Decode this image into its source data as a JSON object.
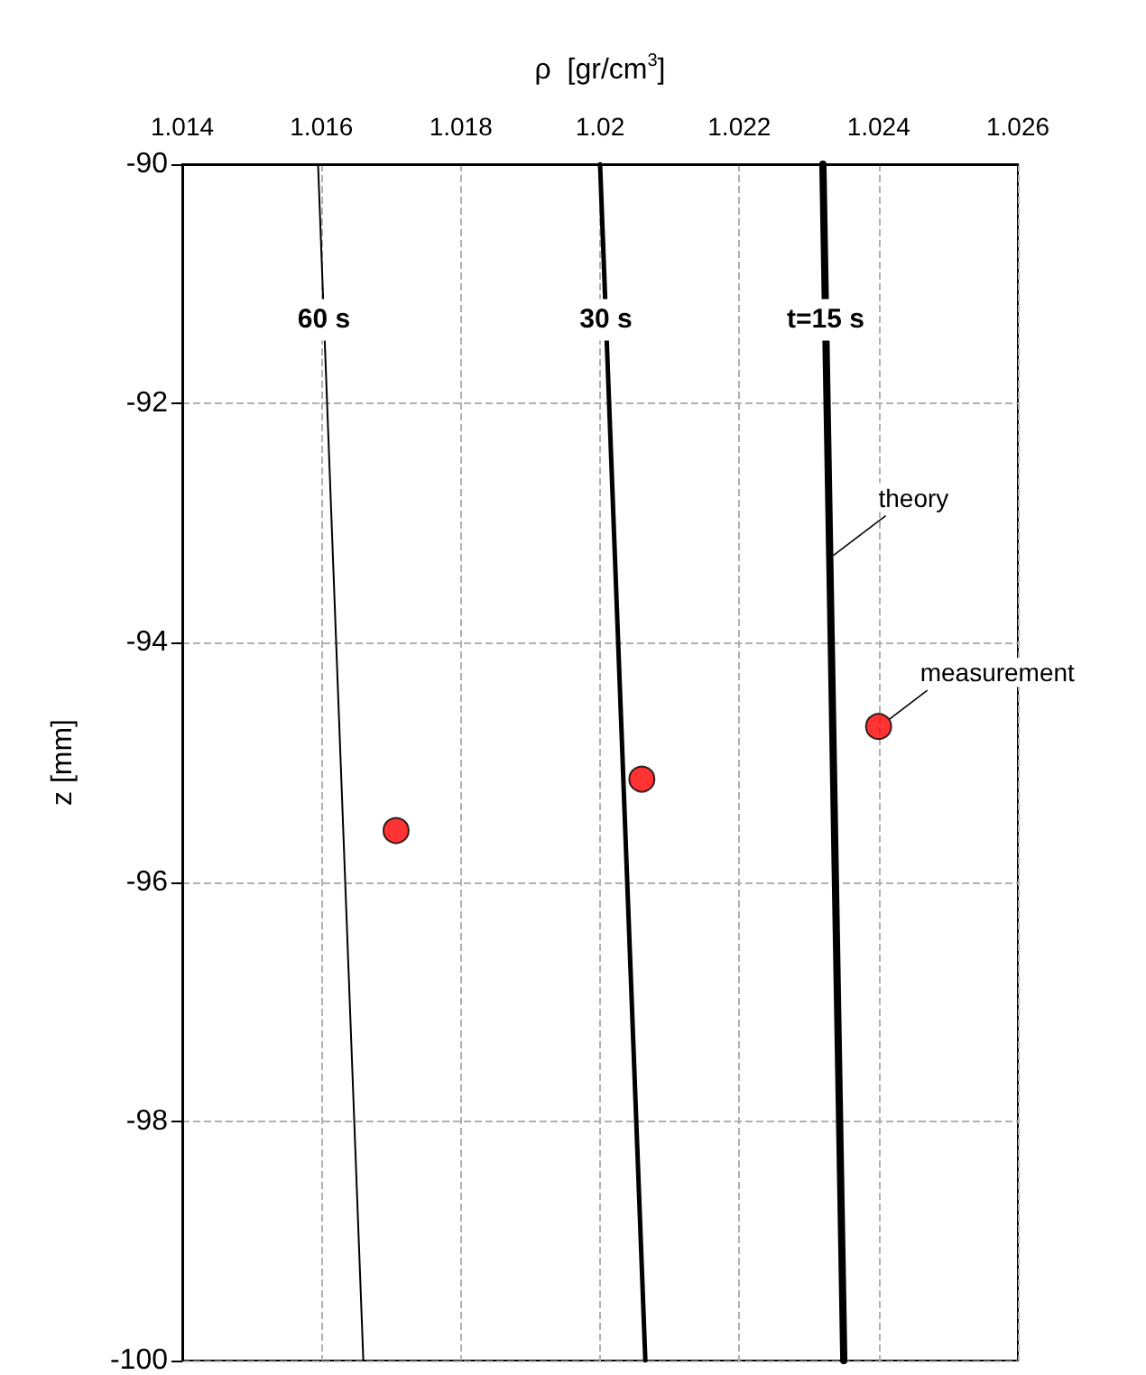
{
  "chart_data": {
    "type": "line",
    "xlabel": "ρ  [gr/cm$^{3}$]",
    "ylabel": "z [mm]",
    "xlim": [
      1.014,
      1.026
    ],
    "xticks": [
      1.014,
      1.016,
      1.018,
      1.02,
      1.022,
      1.024,
      1.026
    ],
    "ylim": [
      -100,
      -90
    ],
    "yticks": [
      -100,
      -98,
      -96,
      -94,
      -92,
      -90
    ],
    "grid": true,
    "line_style": "solid",
    "marker": "none",
    "series": [
      {
        "name": "60 s",
        "color": "#000000",
        "x": [
          1.01595,
          1.0166
        ],
        "values": [
          -90,
          -100
        ]
      },
      {
        "name": "30 s",
        "color": "#000000",
        "x": [
          1.02,
          1.02065
        ],
        "values": [
          -90,
          -100
        ]
      },
      {
        "name": "t=15 s",
        "color": "#000000",
        "x": [
          1.0232,
          1.0235
        ],
        "values": [
          -90,
          -100
        ]
      },
      {
        "type": "scatter",
        "marker": "circle",
        "color": "#ff0000",
        "x": [
          1.01707,
          1.0206,
          1.024
        ],
        "values": [
          -95.57,
          -95.14,
          -94.7
        ]
      }
    ],
    "annotations": [
      {
        "text": "theory",
        "x": 1.02335,
        "y": -93.27
      },
      {
        "text": "measurement",
        "x": 1.024,
        "y": -94.7
      }
    ]
  }
}
